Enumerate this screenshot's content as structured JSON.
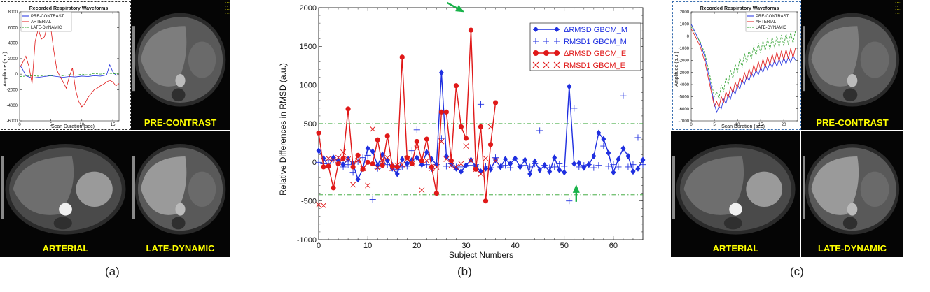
{
  "panel_a": {
    "caption": "(a)",
    "waveform_plot": {
      "title": "Recorded Respiratory Waveforms",
      "xlabel": "Scan Duration (sec)",
      "ylabel": "Amplitude (a.u.)",
      "legend": [
        "PRE-CONTRAST",
        "ARTERIAL",
        "LATE-DYNAMIC"
      ]
    },
    "images": {
      "pre_contrast": "PRE-CONTRAST",
      "arterial": "ARTERIAL",
      "late_dynamic": "LATE-DYNAMIC"
    }
  },
  "panel_c": {
    "caption": "(c)",
    "waveform_plot": {
      "title": "Recorded Respiratory Waveforms",
      "xlabel": "Scan Duration (sec)",
      "ylabel": "Amplitude (a.u.)",
      "legend": [
        "PRE-CONTRAST",
        "ARTERIAL",
        "LATE-DYNAMIC"
      ]
    },
    "images": {
      "pre_contrast": "PRE-CONTRAST",
      "arterial": "ARTERIAL",
      "late_dynamic": "LATE-DYNAMIC"
    }
  },
  "panel_b": {
    "caption": "(b)"
  },
  "colors": {
    "blue": "#1f2fe0",
    "red": "#e01818",
    "green_dash": "#2aa02a",
    "arrow": "#19b34a",
    "mri_label": "#ffff00"
  },
  "chart_data": [
    {
      "id": "waveform_a",
      "type": "line",
      "title": "Recorded Respiratory Waveforms",
      "xlabel": "Scan Duration (sec)",
      "ylabel": "Amplitude (a.u.)",
      "xlim": [
        0,
        16
      ],
      "ylim": [
        -6000,
        8000
      ],
      "xticks": [
        0,
        5,
        10,
        15
      ],
      "yticks": [
        -6000,
        -4000,
        -2000,
        0,
        2000,
        4000,
        6000,
        8000
      ],
      "series": [
        {
          "name": "PRE-CONTRAST",
          "color": "#1f2fe0",
          "style": "solid",
          "x": [
            0,
            0.5,
            1,
            2,
            3,
            4,
            5,
            6,
            7,
            8,
            9,
            10,
            11,
            12,
            13,
            14,
            14.5,
            15,
            15.5,
            16
          ],
          "y": [
            1200,
            600,
            -200,
            -500,
            -400,
            -300,
            -200,
            -300,
            -400,
            -300,
            -350,
            -250,
            -300,
            -200,
            -250,
            -100,
            1200,
            300,
            -150,
            -100
          ]
        },
        {
          "name": "ARTERIAL",
          "color": "#e01818",
          "style": "solid",
          "x": [
            0,
            0.5,
            1,
            1.5,
            2,
            2.5,
            3,
            3.5,
            4,
            4.5,
            5,
            5.5,
            6,
            6.5,
            7,
            7.5,
            8,
            8.5,
            9,
            9.5,
            10,
            10.5,
            11,
            11.5,
            12,
            12.5,
            13,
            13.5,
            14,
            14.5,
            15,
            15.5,
            16
          ],
          "y": [
            800,
            1500,
            2300,
            1000,
            -1200,
            4200,
            5800,
            4500,
            4800,
            6400,
            6000,
            3000,
            500,
            -300,
            -1000,
            -1800,
            -300,
            800,
            -2000,
            -3500,
            -4200,
            -3800,
            -3000,
            -2500,
            -2000,
            -1800,
            -1500,
            -1300,
            -1000,
            -800,
            -1000,
            -1500,
            -1200
          ]
        },
        {
          "name": "LATE-DYNAMIC",
          "color": "#2aa02a",
          "style": "dashed",
          "x": [
            0,
            1,
            2,
            3,
            4,
            5,
            6,
            7,
            8,
            9,
            10,
            11,
            12,
            13,
            14,
            15,
            16
          ],
          "y": [
            -300,
            -250,
            -200,
            -250,
            -150,
            -200,
            -100,
            -200,
            -50,
            -150,
            0,
            -100,
            100,
            0,
            150,
            50,
            100
          ]
        }
      ]
    },
    {
      "id": "rmsd",
      "type": "line+scatter",
      "xlabel": "Subject Numbers",
      "ylabel": "Relative Differences in RMSD (a.u.)",
      "xlim": [
        0,
        66
      ],
      "ylim": [
        -1000,
        2000
      ],
      "xticks": [
        0,
        10,
        20,
        30,
        40,
        50,
        60
      ],
      "yticks": [
        -1000,
        -500,
        0,
        500,
        1000,
        1500,
        2000
      ],
      "reference_lines": [
        500,
        -420
      ],
      "legend_location": "upper-right",
      "arrows": [
        {
          "x": 31,
          "y": 1720,
          "direction": "from upper-left"
        },
        {
          "x": 52,
          "y": -330,
          "direction": "from below"
        }
      ],
      "series": [
        {
          "name": "ΔRMSD GBCM_M",
          "color": "#1f2fe0",
          "marker": "diamond",
          "line": true,
          "x": [
            0,
            1,
            2,
            3,
            4,
            5,
            6,
            7,
            8,
            9,
            10,
            11,
            12,
            13,
            14,
            15,
            16,
            17,
            18,
            19,
            20,
            21,
            22,
            23,
            24,
            25,
            26,
            27,
            28,
            29,
            30,
            31,
            32,
            33,
            34,
            35,
            36,
            37,
            38,
            39,
            40,
            41,
            42,
            43,
            44,
            45,
            46,
            47,
            48,
            49,
            50,
            51,
            52,
            53,
            54,
            55,
            56,
            57,
            58,
            59,
            60,
            61,
            62,
            63,
            64,
            65,
            66
          ],
          "y": [
            150,
            50,
            -50,
            60,
            20,
            -30,
            40,
            -20,
            -220,
            -80,
            180,
            140,
            -40,
            100,
            20,
            -80,
            -150,
            40,
            -20,
            30,
            60,
            -30,
            130,
            40,
            -30,
            1160,
            80,
            -20,
            -80,
            -120,
            -40,
            30,
            -50,
            -120,
            -80,
            -90,
            30,
            -60,
            40,
            -20,
            50,
            -60,
            30,
            -150,
            10,
            -100,
            -40,
            -120,
            60,
            -100,
            -130,
            980,
            -20,
            -10,
            -70,
            -30,
            80,
            380,
            300,
            120,
            -130,
            40,
            180,
            80,
            -120,
            -80,
            30
          ]
        },
        {
          "name": "RMSD1 GBCM_M",
          "color": "#1f2fe0",
          "marker": "plus",
          "line": false,
          "x": [
            0,
            1,
            2,
            3,
            4,
            5,
            6,
            7,
            8,
            9,
            10,
            11,
            12,
            13,
            14,
            15,
            16,
            17,
            18,
            19,
            20,
            21,
            22,
            23,
            24,
            25,
            26,
            27,
            28,
            29,
            30,
            31,
            32,
            33,
            34,
            35,
            36,
            37,
            38,
            39,
            40,
            41,
            42,
            43,
            44,
            45,
            46,
            47,
            48,
            49,
            50,
            51,
            52,
            53,
            54,
            55,
            56,
            57,
            58,
            59,
            60,
            61,
            62,
            63,
            64,
            65,
            66
          ],
          "y": [
            0,
            -20,
            20,
            30,
            40,
            -60,
            -30,
            -130,
            10,
            60,
            90,
            -480,
            -80,
            -20,
            -30,
            -40,
            -90,
            -60,
            -50,
            150,
            420,
            -40,
            -30,
            -80,
            -30,
            310,
            -50,
            -20,
            -60,
            -60,
            -50,
            -40,
            -30,
            750,
            -50,
            -70,
            60,
            -60,
            -40,
            -70,
            40,
            -50,
            -40,
            -60,
            -20,
            410,
            -40,
            -70,
            -60,
            -20,
            -50,
            -500,
            700,
            -60,
            -40,
            -30,
            -70,
            -40,
            210,
            -50,
            -30,
            -60,
            860,
            -60,
            -30,
            320,
            -30
          ]
        },
        {
          "name": "ΔRMSD GBCM_E",
          "color": "#e01818",
          "marker": "circle",
          "line": true,
          "x": [
            0,
            1,
            2,
            3,
            4,
            5,
            6,
            7,
            8,
            9,
            10,
            11,
            12,
            13,
            14,
            15,
            16,
            17,
            18,
            19,
            20,
            21,
            22,
            23,
            24,
            25,
            26,
            27,
            28,
            29,
            30,
            31,
            32,
            33,
            34,
            35,
            36
          ],
          "y": [
            380,
            -60,
            -50,
            -330,
            -20,
            50,
            690,
            -60,
            90,
            -90,
            0,
            -20,
            290,
            -40,
            340,
            -50,
            -60,
            1360,
            60,
            -20,
            270,
            20,
            300,
            -60,
            -400,
            650,
            650,
            20,
            990,
            460,
            310,
            1710,
            -90,
            460,
            -500,
            230,
            770
          ]
        },
        {
          "name": "RMSD1 GBCM_E",
          "color": "#e01818",
          "marker": "x",
          "line": false,
          "x": [
            0,
            1,
            2,
            3,
            4,
            5,
            6,
            7,
            8,
            9,
            10,
            11,
            12,
            13,
            14,
            15,
            16,
            17,
            18,
            19,
            20,
            21,
            22,
            23,
            24,
            25,
            26,
            27,
            28,
            29,
            30,
            31,
            32,
            33,
            34,
            35,
            36
          ],
          "y": [
            -550,
            -560,
            50,
            30,
            60,
            130,
            40,
            -290,
            20,
            -80,
            -300,
            430,
            -70,
            30,
            60,
            -80,
            -40,
            -30,
            40,
            -20,
            180,
            -360,
            20,
            -80,
            -60,
            270,
            40,
            -40,
            -60,
            -20,
            210,
            20,
            -90,
            -150,
            50,
            460,
            20
          ]
        }
      ]
    },
    {
      "id": "waveform_c",
      "type": "line",
      "title": "Recorded Respiratory Waveforms",
      "xlabel": "Scan Duration (sec)",
      "ylabel": "Amplitude (a.u.)",
      "xlim": [
        0,
        23
      ],
      "ylim": [
        -7000,
        2000
      ],
      "xticks": [
        0,
        5,
        10,
        15,
        20
      ],
      "yticks": [
        -7000,
        -6000,
        -5000,
        -4000,
        -3000,
        -2000,
        -1000,
        0,
        1000,
        2000
      ],
      "series": [
        {
          "name": "PRE-CONTRAST",
          "color": "#1f2fe0",
          "style": "solid",
          "x": [
            0,
            1,
            2,
            3,
            4,
            5,
            5.5,
            6,
            6.5,
            7,
            7.5,
            8,
            8.5,
            9,
            9.5,
            10,
            10.5,
            11,
            11.5,
            12,
            12.5,
            13,
            13.5,
            14,
            14.5,
            15,
            15.5,
            16,
            16.5,
            17,
            17.5,
            18,
            18.5,
            19,
            19.5,
            20,
            20.5,
            21,
            21.5,
            22,
            22.5
          ],
          "y": [
            1000,
            200,
            -600,
            -1800,
            -3600,
            -5600,
            -6300,
            -5800,
            -6000,
            -5200,
            -5600,
            -4800,
            -5200,
            -4400,
            -4800,
            -4000,
            -4400,
            -3600,
            -4000,
            -3300,
            -3700,
            -3000,
            -3400,
            -2800,
            -3200,
            -2600,
            -3000,
            -2400,
            -2800,
            -2200,
            -2600,
            -2000,
            -2500,
            -1900,
            -2400,
            -1800,
            -2300,
            -1700,
            -2200,
            -1600,
            -2000
          ]
        },
        {
          "name": "ARTERIAL",
          "color": "#e01818",
          "style": "solid",
          "x": [
            0,
            1,
            2,
            3,
            4,
            5,
            5.5,
            6,
            6.5,
            7,
            7.5,
            8,
            8.5,
            9,
            9.5,
            10,
            10.5,
            11,
            11.5,
            12,
            12.5,
            13,
            13.5,
            14,
            14.5,
            15,
            15.5,
            16,
            16.5,
            17,
            17.5,
            18,
            18.5,
            19,
            19.5,
            20,
            20.5,
            21,
            21.5,
            22,
            22.5
          ],
          "y": [
            600,
            -100,
            -900,
            -2200,
            -4000,
            -5800,
            -5400,
            -5900,
            -5000,
            -5500,
            -4600,
            -5100,
            -4200,
            -4700,
            -3800,
            -4300,
            -3400,
            -3900,
            -3000,
            -3600,
            -2700,
            -3300,
            -2400,
            -3000,
            -2100,
            -2800,
            -1900,
            -2600,
            -1700,
            -2400,
            -1500,
            -2200,
            -1300,
            -2100,
            -1200,
            -2000,
            -1100,
            -1900,
            -1000,
            -1800,
            -1000
          ]
        },
        {
          "name": "LATE-DYNAMIC",
          "color": "#2aa02a",
          "style": "dashed",
          "x": [
            0,
            1,
            2,
            3,
            4,
            5,
            5.5,
            6,
            6.5,
            7,
            7.5,
            8,
            8.5,
            9,
            9.5,
            10,
            10.5,
            11,
            11.5,
            12,
            12.5,
            13,
            13.5,
            14,
            14.5,
            15,
            15.5,
            16,
            16.5,
            17,
            17.5,
            18,
            18.5,
            19,
            19.5,
            20,
            20.5,
            21,
            21.5,
            22,
            22.5
          ],
          "y": [
            800,
            100,
            -500,
            -1500,
            -3200,
            -5000,
            -4600,
            -5200,
            -4000,
            -4600,
            -3400,
            -4000,
            -2800,
            -3500,
            -2300,
            -3000,
            -1800,
            -2600,
            -1400,
            -2200,
            -1100,
            -1900,
            -800,
            -1600,
            -600,
            -1400,
            -400,
            -1200,
            -200,
            -1100,
            -100,
            -1000,
            0,
            -900,
            100,
            -800,
            200,
            -700,
            300,
            -600,
            400
          ]
        }
      ]
    }
  ]
}
